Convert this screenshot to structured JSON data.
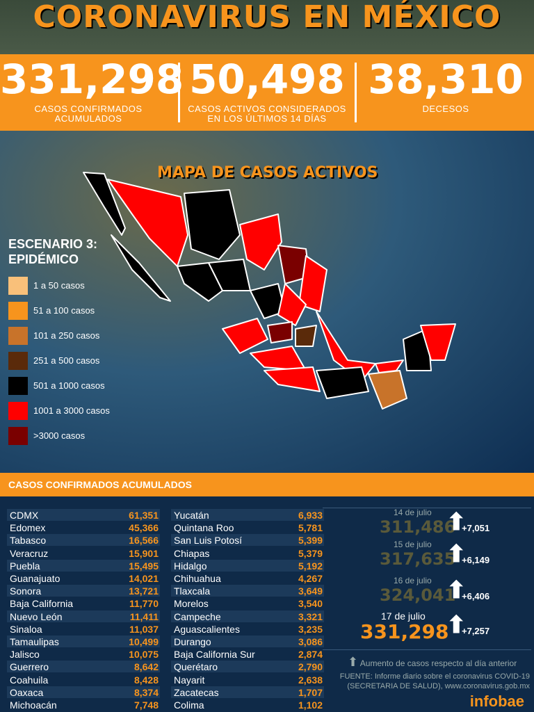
{
  "title": "CORONAVIRUS EN MÉXICO",
  "stats": [
    {
      "value": "331,298",
      "label": "CASOS CONFIRMADOS ACUMULADOS"
    },
    {
      "value": "50,498",
      "label": "CASOS ACTIVOS CONSIDERADOS\nEN LOS ÚLTIMOS 14 DÍAS"
    },
    {
      "value": "38,310",
      "label": "DECESOS"
    }
  ],
  "map": {
    "title": "MAPA DE CASOS ACTIVOS",
    "scenario": "ESCENARIO 3:\nEPIDÉMICO",
    "legend": [
      {
        "label": "1 a 50 casos",
        "color": "#f9c07a"
      },
      {
        "label": "51 a 100 casos",
        "color": "#f7941d"
      },
      {
        "label": "101 a 250 casos",
        "color": "#c8732a"
      },
      {
        "label": "251 a 500 casos",
        "color": "#5a2a0a"
      },
      {
        "label": "501 a 1000 casos",
        "color": "#000000"
      },
      {
        "label": "1001 a 3000 casos",
        "color": "#ff0000"
      },
      {
        "label": ">3000 casos",
        "color": "#7a0000"
      }
    ]
  },
  "table_title": "CASOS CONFIRMADOS ACUMULADOS",
  "table_left": [
    {
      "name": "CDMX",
      "value": "61,351"
    },
    {
      "name": "Edomex",
      "value": "45,366"
    },
    {
      "name": "Tabasco",
      "value": "16,566"
    },
    {
      "name": "Veracruz",
      "value": "15,901"
    },
    {
      "name": "Puebla",
      "value": "15,495"
    },
    {
      "name": "Guanajuato",
      "value": "14,021"
    },
    {
      "name": "Sonora",
      "value": "13,721"
    },
    {
      "name": "Baja California",
      "value": "11,770"
    },
    {
      "name": "Nuevo León",
      "value": "11,411"
    },
    {
      "name": "Sinaloa",
      "value": "11,037"
    },
    {
      "name": "Tamaulipas",
      "value": "10,499"
    },
    {
      "name": "Jalisco",
      "value": "10,075"
    },
    {
      "name": "Guerrero",
      "value": "8,642"
    },
    {
      "name": "Coahuila",
      "value": "8,428"
    },
    {
      "name": "Oaxaca",
      "value": "8,374"
    },
    {
      "name": "Michoacán",
      "value": "7,748"
    }
  ],
  "table_right": [
    {
      "name": "Yucatán",
      "value": "6,933"
    },
    {
      "name": "Quintana Roo",
      "value": "5,781"
    },
    {
      "name": "San Luis Potosí",
      "value": "5,399"
    },
    {
      "name": "Chiapas",
      "value": "5,379"
    },
    {
      "name": "Hidalgo",
      "value": "5,192"
    },
    {
      "name": "Chihuahua",
      "value": "4,267"
    },
    {
      "name": "Tlaxcala",
      "value": "3,649"
    },
    {
      "name": "Morelos",
      "value": "3,540"
    },
    {
      "name": "Campeche",
      "value": "3,321"
    },
    {
      "name": "Aguascalientes",
      "value": "3,235"
    },
    {
      "name": "Durango",
      "value": "3,086"
    },
    {
      "name": "Baja California Sur",
      "value": "2,874"
    },
    {
      "name": "Querétaro",
      "value": "2,790"
    },
    {
      "name": "Nayarit",
      "value": "2,638"
    },
    {
      "name": "Zacatecas",
      "value": "1,707"
    },
    {
      "name": "Colima",
      "value": "1,102"
    }
  ],
  "daily": [
    {
      "date": "14 de julio",
      "total": "311,486",
      "increase": "+7,051"
    },
    {
      "date": "15 de julio",
      "total": "317,635",
      "increase": "+6,149"
    },
    {
      "date": "16 de julio",
      "total": "324,041",
      "increase": "+6,406"
    },
    {
      "date": "17 de julio",
      "total": "331,298",
      "increase": "+7,257"
    }
  ],
  "arrow_note": "Aumento de casos respecto al día anterior",
  "source": "FUENTE:  Informe diario sobre el coronavirus COVID-19\n(SECRETARIA DE SALUD), www.coronavirus.gob.mx",
  "brand": "infobae"
}
